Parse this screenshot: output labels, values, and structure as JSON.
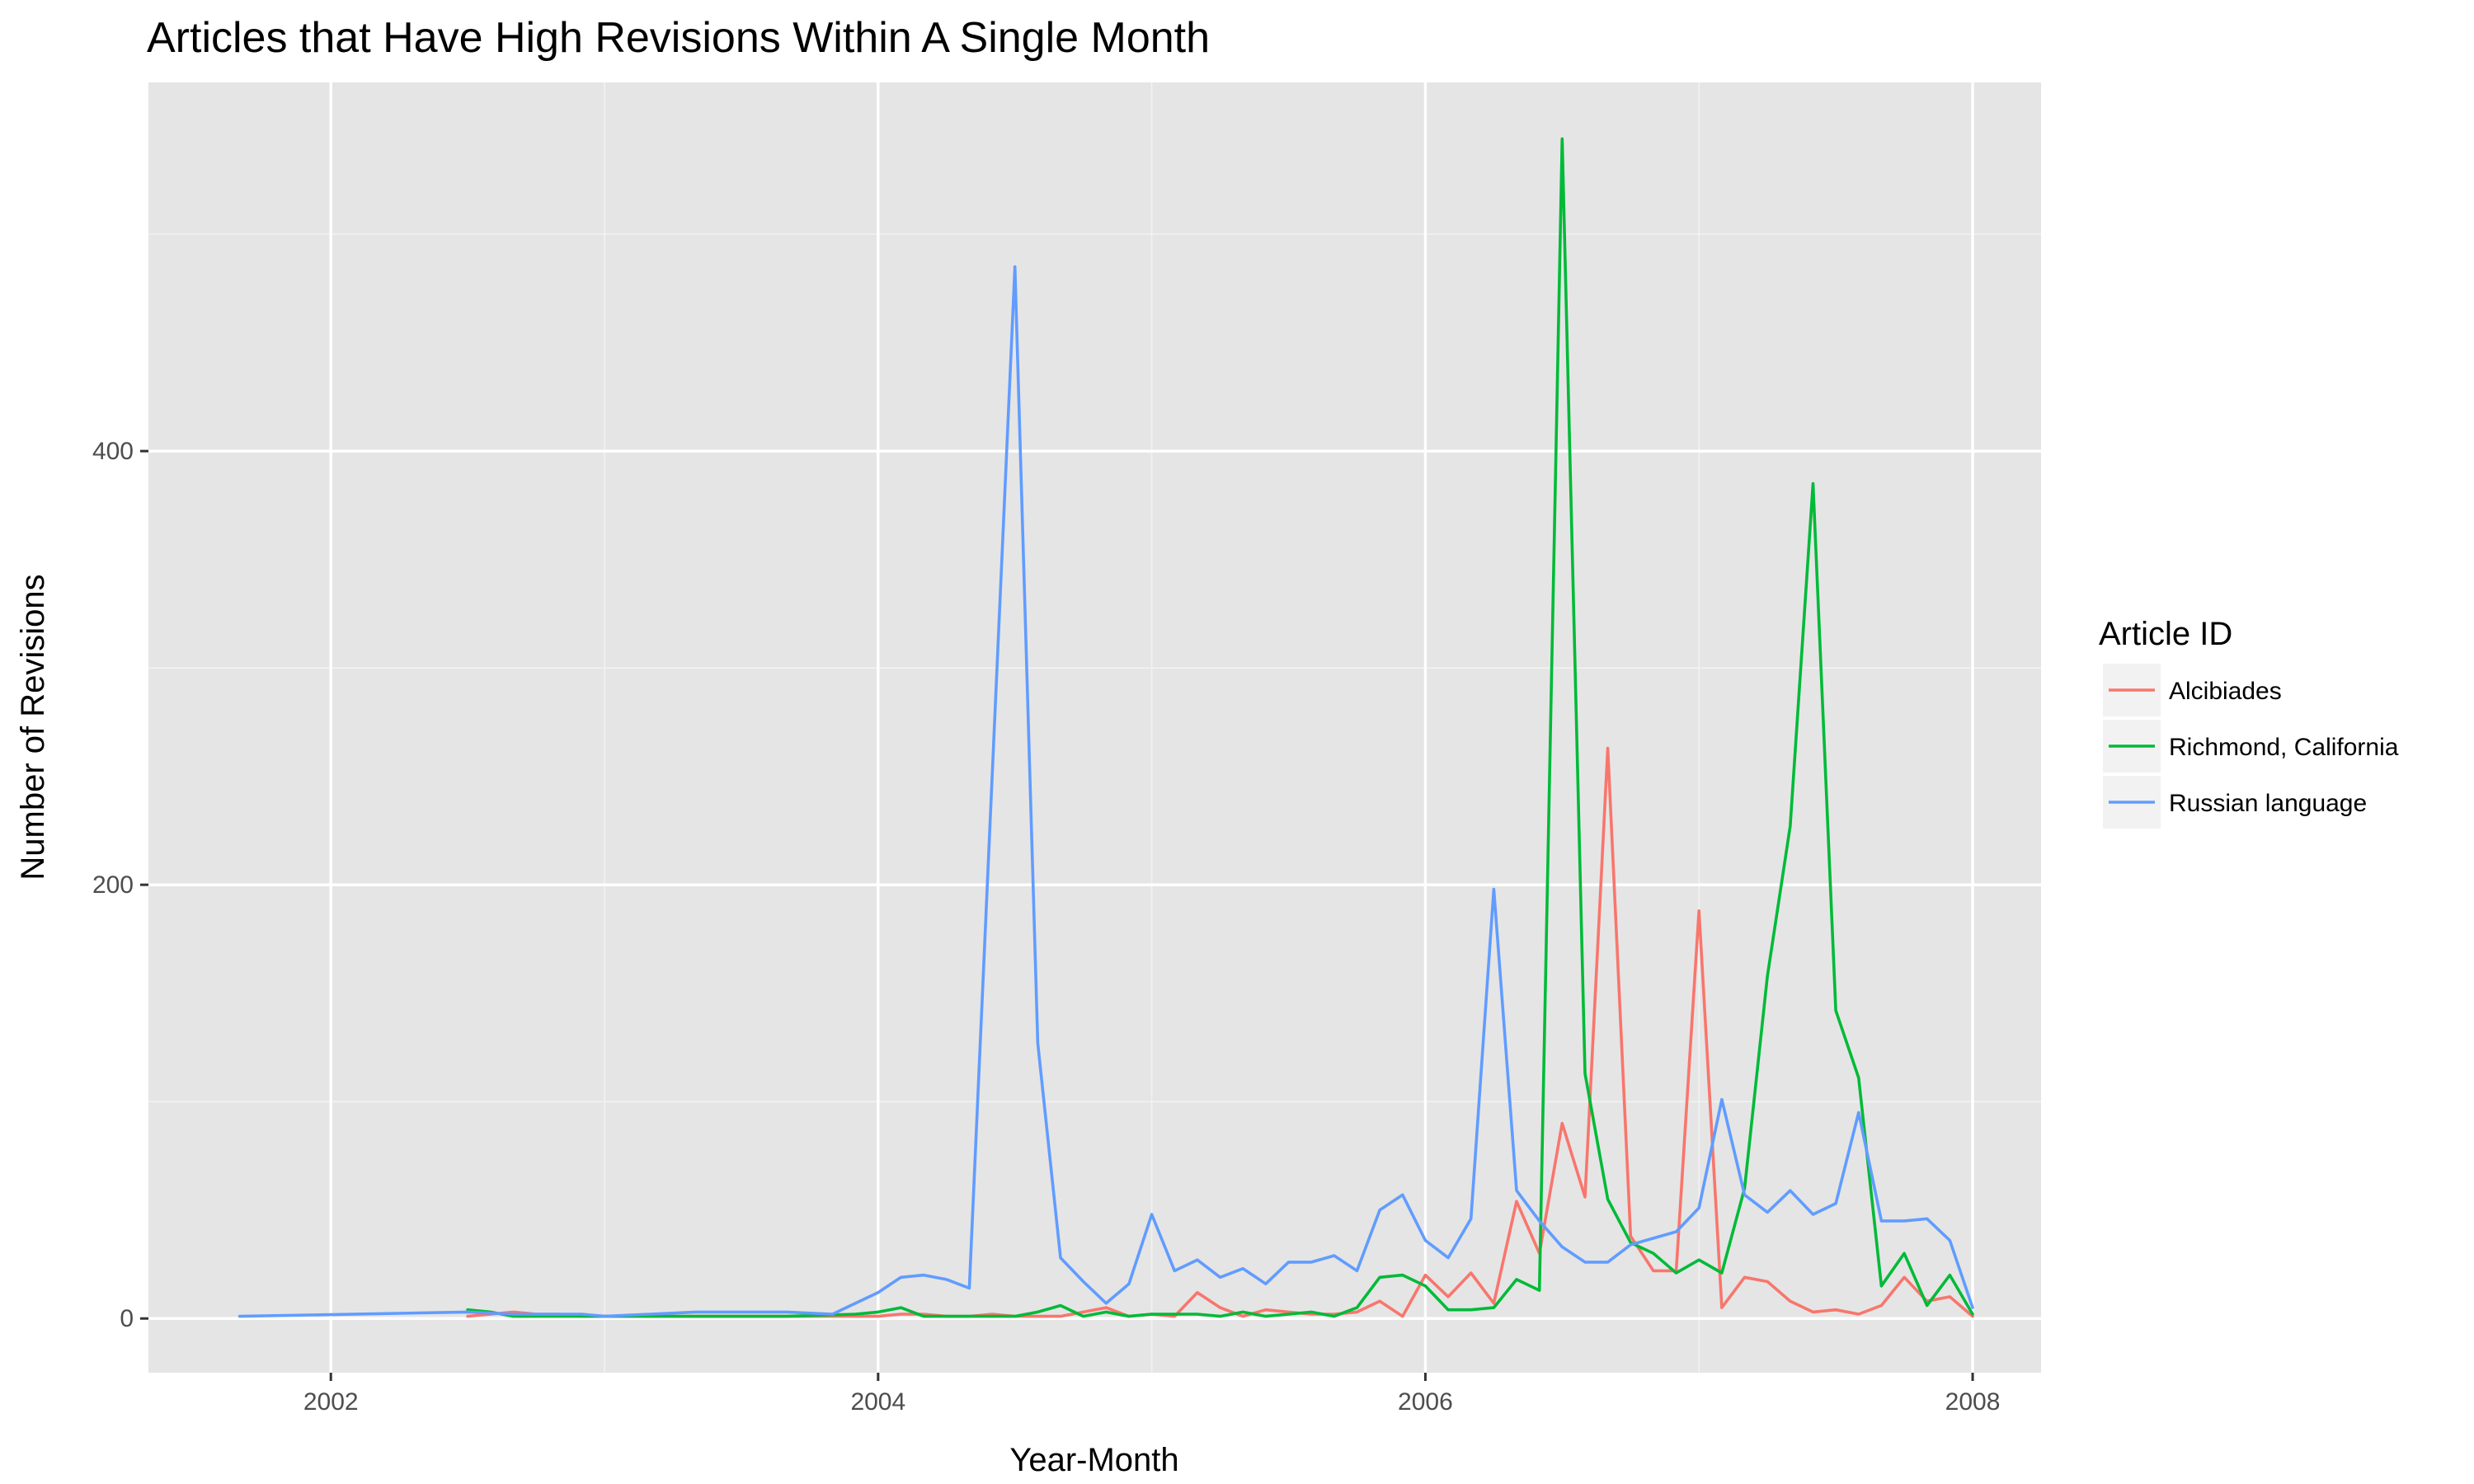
{
  "chart_data": {
    "type": "line",
    "title": "Articles that Have High Revisions Within A Single Month",
    "xlabel": "Year-Month",
    "ylabel": "Number of Revisions",
    "xlim": [
      "2001-05-01",
      "2008-04-01"
    ],
    "ylim": [
      -25,
      570
    ],
    "x_ticks": [
      "2002",
      "2004",
      "2006",
      "2008"
    ],
    "y_ticks": [
      "0",
      "200",
      "400"
    ],
    "grid": true,
    "legend": {
      "title": "Article ID",
      "position": "right"
    },
    "series": [
      {
        "name": "Alcibiades",
        "color": "#F8766D",
        "points": [
          [
            "2002-07",
            1
          ],
          [
            "2002-08",
            2
          ],
          [
            "2002-09",
            3
          ],
          [
            "2002-10",
            2
          ],
          [
            "2002-11",
            2
          ],
          [
            "2002-12",
            1
          ],
          [
            "2003-01",
            1
          ],
          [
            "2003-03",
            1
          ],
          [
            "2003-06",
            1
          ],
          [
            "2003-09",
            1
          ],
          [
            "2003-12",
            1
          ],
          [
            "2004-01",
            1
          ],
          [
            "2004-02",
            2
          ],
          [
            "2004-03",
            2
          ],
          [
            "2004-04",
            1
          ],
          [
            "2004-05",
            1
          ],
          [
            "2004-06",
            2
          ],
          [
            "2004-07",
            1
          ],
          [
            "2004-08",
            1
          ],
          [
            "2004-09",
            1
          ],
          [
            "2004-10",
            3
          ],
          [
            "2004-11",
            5
          ],
          [
            "2004-12",
            1
          ],
          [
            "2005-01",
            2
          ],
          [
            "2005-02",
            1
          ],
          [
            "2005-03",
            12
          ],
          [
            "2005-04",
            5
          ],
          [
            "2005-05",
            1
          ],
          [
            "2005-06",
            4
          ],
          [
            "2005-07",
            3
          ],
          [
            "2005-08",
            2
          ],
          [
            "2005-09",
            2
          ],
          [
            "2005-10",
            3
          ],
          [
            "2005-11",
            8
          ],
          [
            "2005-12",
            1
          ],
          [
            "2006-01",
            20
          ],
          [
            "2006-02",
            10
          ],
          [
            "2006-03",
            21
          ],
          [
            "2006-04",
            7
          ],
          [
            "2006-05",
            54
          ],
          [
            "2006-06",
            30
          ],
          [
            "2006-07",
            90
          ],
          [
            "2006-08",
            56
          ],
          [
            "2006-09",
            263
          ],
          [
            "2006-10",
            38
          ],
          [
            "2006-11",
            22
          ],
          [
            "2006-12",
            22
          ],
          [
            "2007-01",
            188
          ],
          [
            "2007-02",
            5
          ],
          [
            "2007-03",
            19
          ],
          [
            "2007-04",
            17
          ],
          [
            "2007-05",
            8
          ],
          [
            "2007-06",
            3
          ],
          [
            "2007-07",
            4
          ],
          [
            "2007-08",
            2
          ],
          [
            "2007-09",
            6
          ],
          [
            "2007-10",
            19
          ],
          [
            "2007-11",
            8
          ],
          [
            "2007-12",
            10
          ],
          [
            "2008-01",
            1
          ]
        ]
      },
      {
        "name": "Richmond, California",
        "color": "#00BA38",
        "points": [
          [
            "2002-07",
            4
          ],
          [
            "2002-08",
            3
          ],
          [
            "2002-09",
            1
          ],
          [
            "2002-12",
            1
          ],
          [
            "2003-03",
            1
          ],
          [
            "2003-06",
            1
          ],
          [
            "2003-09",
            1
          ],
          [
            "2003-12",
            2
          ],
          [
            "2004-01",
            3
          ],
          [
            "2004-02",
            5
          ],
          [
            "2004-03",
            1
          ],
          [
            "2004-04",
            1
          ],
          [
            "2004-05",
            1
          ],
          [
            "2004-06",
            1
          ],
          [
            "2004-07",
            1
          ],
          [
            "2004-08",
            3
          ],
          [
            "2004-09",
            6
          ],
          [
            "2004-10",
            1
          ],
          [
            "2004-11",
            3
          ],
          [
            "2004-12",
            1
          ],
          [
            "2005-01",
            2
          ],
          [
            "2005-02",
            2
          ],
          [
            "2005-03",
            2
          ],
          [
            "2005-04",
            1
          ],
          [
            "2005-05",
            3
          ],
          [
            "2005-06",
            1
          ],
          [
            "2005-07",
            2
          ],
          [
            "2005-08",
            3
          ],
          [
            "2005-09",
            1
          ],
          [
            "2005-10",
            5
          ],
          [
            "2005-11",
            19
          ],
          [
            "2005-12",
            20
          ],
          [
            "2006-01",
            15
          ],
          [
            "2006-02",
            4
          ],
          [
            "2006-03",
            4
          ],
          [
            "2006-04",
            5
          ],
          [
            "2006-05",
            18
          ],
          [
            "2006-06",
            13
          ],
          [
            "2006-07",
            544
          ],
          [
            "2006-08",
            113
          ],
          [
            "2006-09",
            55
          ],
          [
            "2006-10",
            35
          ],
          [
            "2006-11",
            30
          ],
          [
            "2006-12",
            21
          ],
          [
            "2007-01",
            27
          ],
          [
            "2007-02",
            21
          ],
          [
            "2007-03",
            60
          ],
          [
            "2007-04",
            158
          ],
          [
            "2007-05",
            227
          ],
          [
            "2007-06",
            385
          ],
          [
            "2007-07",
            142
          ],
          [
            "2007-08",
            111
          ],
          [
            "2007-09",
            15
          ],
          [
            "2007-10",
            30
          ],
          [
            "2007-11",
            6
          ],
          [
            "2007-12",
            20
          ],
          [
            "2008-01",
            2
          ]
        ]
      },
      {
        "name": "Russian language",
        "color": "#619CFF",
        "points": [
          [
            "2001-09",
            1
          ],
          [
            "2002-07",
            3
          ],
          [
            "2002-09",
            2
          ],
          [
            "2002-12",
            2
          ],
          [
            "2003-01",
            1
          ],
          [
            "2003-03",
            2
          ],
          [
            "2003-05",
            3
          ],
          [
            "2003-09",
            3
          ],
          [
            "2003-11",
            2
          ],
          [
            "2004-01",
            12
          ],
          [
            "2004-02",
            19
          ],
          [
            "2004-03",
            20
          ],
          [
            "2004-04",
            18
          ],
          [
            "2004-05",
            14
          ],
          [
            "2004-06",
            250
          ],
          [
            "2004-07",
            485
          ],
          [
            "2004-08",
            127
          ],
          [
            "2004-09",
            28
          ],
          [
            "2004-10",
            17
          ],
          [
            "2004-11",
            7
          ],
          [
            "2004-12",
            16
          ],
          [
            "2005-01",
            48
          ],
          [
            "2005-02",
            22
          ],
          [
            "2005-03",
            27
          ],
          [
            "2005-04",
            19
          ],
          [
            "2005-05",
            23
          ],
          [
            "2005-06",
            16
          ],
          [
            "2005-07",
            26
          ],
          [
            "2005-08",
            26
          ],
          [
            "2005-09",
            29
          ],
          [
            "2005-10",
            22
          ],
          [
            "2005-11",
            50
          ],
          [
            "2005-12",
            57
          ],
          [
            "2006-01",
            36
          ],
          [
            "2006-02",
            28
          ],
          [
            "2006-03",
            46
          ],
          [
            "2006-04",
            198
          ],
          [
            "2006-05",
            59
          ],
          [
            "2006-06",
            45
          ],
          [
            "2006-07",
            33
          ],
          [
            "2006-08",
            26
          ],
          [
            "2006-09",
            26
          ],
          [
            "2006-10",
            34
          ],
          [
            "2006-11",
            37
          ],
          [
            "2006-12",
            40
          ],
          [
            "2007-01",
            51
          ],
          [
            "2007-02",
            101
          ],
          [
            "2007-03",
            57
          ],
          [
            "2007-04",
            49
          ],
          [
            "2007-05",
            59
          ],
          [
            "2007-06",
            48
          ],
          [
            "2007-07",
            53
          ],
          [
            "2007-08",
            95
          ],
          [
            "2007-09",
            45
          ],
          [
            "2007-10",
            45
          ],
          [
            "2007-11",
            46
          ],
          [
            "2007-12",
            36
          ],
          [
            "2008-01",
            5
          ]
        ]
      }
    ]
  }
}
